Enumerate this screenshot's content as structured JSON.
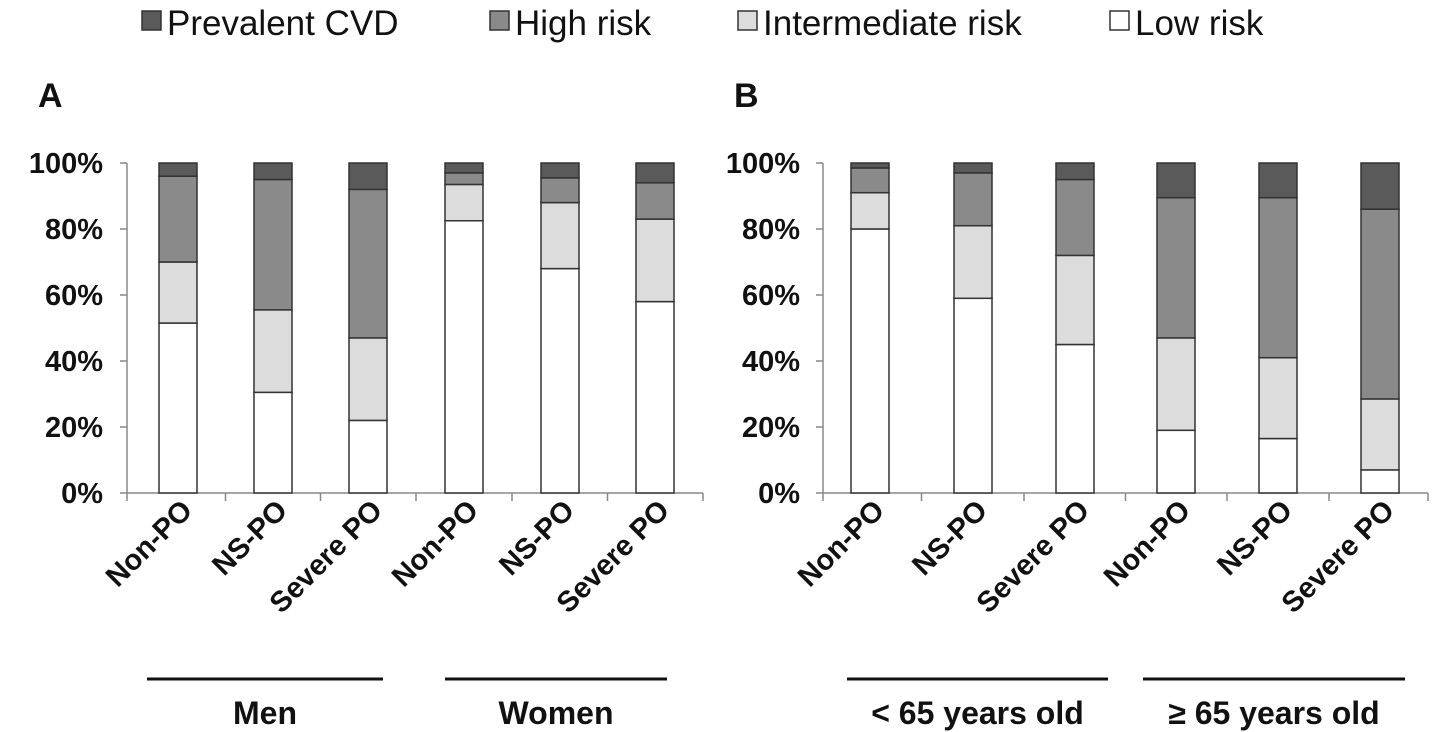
{
  "legend": [
    {
      "label": "Prevalent CVD",
      "color": "#5a5a5a"
    },
    {
      "label": "High risk",
      "color": "#8a8a8a"
    },
    {
      "label": "Intermediate risk",
      "color": "#dcdcdc"
    },
    {
      "label": "Low risk",
      "color": "#ffffff"
    }
  ],
  "chart_data": [
    {
      "type": "bar",
      "stacked": true,
      "panel": "A",
      "ylim": [
        0,
        100
      ],
      "yticks": [
        "0%",
        "20%",
        "40%",
        "60%",
        "80%",
        "100%"
      ],
      "categories": [
        "Non-PO",
        "NS-PO",
        "Severe PO",
        "Non-PO",
        "NS-PO",
        "Severe PO"
      ],
      "groups": [
        {
          "label": "Men",
          "categories": [
            0,
            1,
            2
          ]
        },
        {
          "label": "Women",
          "categories": [
            3,
            4,
            5
          ]
        }
      ],
      "series": [
        {
          "name": "Low risk",
          "values": [
            51.5,
            30.5,
            22,
            82.5,
            68,
            58
          ]
        },
        {
          "name": "Intermediate risk",
          "values": [
            18.5,
            25,
            25,
            11,
            20,
            25
          ]
        },
        {
          "name": "High risk",
          "values": [
            26,
            39.5,
            45,
            3.5,
            7.5,
            11
          ]
        },
        {
          "name": "Prevalent CVD",
          "values": [
            4,
            5,
            8,
            3,
            4.5,
            6
          ]
        }
      ]
    },
    {
      "type": "bar",
      "stacked": true,
      "panel": "B",
      "ylim": [
        0,
        100
      ],
      "yticks": [
        "0%",
        "20%",
        "40%",
        "60%",
        "80%",
        "100%"
      ],
      "categories": [
        "Non-PO",
        "NS-PO",
        "Severe PO",
        "Non-PO",
        "NS-PO",
        "Severe PO"
      ],
      "groups": [
        {
          "label": "< 65 years old",
          "categories": [
            0,
            1,
            2
          ]
        },
        {
          "label": "≥ 65 years old",
          "categories": [
            3,
            4,
            5
          ]
        }
      ],
      "series": [
        {
          "name": "Low risk",
          "values": [
            80,
            59,
            45,
            19,
            16.5,
            7
          ]
        },
        {
          "name": "Intermediate risk",
          "values": [
            11,
            22,
            27,
            28,
            24.5,
            21.5
          ]
        },
        {
          "name": "High risk",
          "values": [
            7.5,
            16,
            23,
            42.5,
            48.5,
            57.5
          ]
        },
        {
          "name": "Prevalent CVD",
          "values": [
            1.5,
            3,
            5,
            10.5,
            10.5,
            14
          ]
        }
      ]
    }
  ]
}
